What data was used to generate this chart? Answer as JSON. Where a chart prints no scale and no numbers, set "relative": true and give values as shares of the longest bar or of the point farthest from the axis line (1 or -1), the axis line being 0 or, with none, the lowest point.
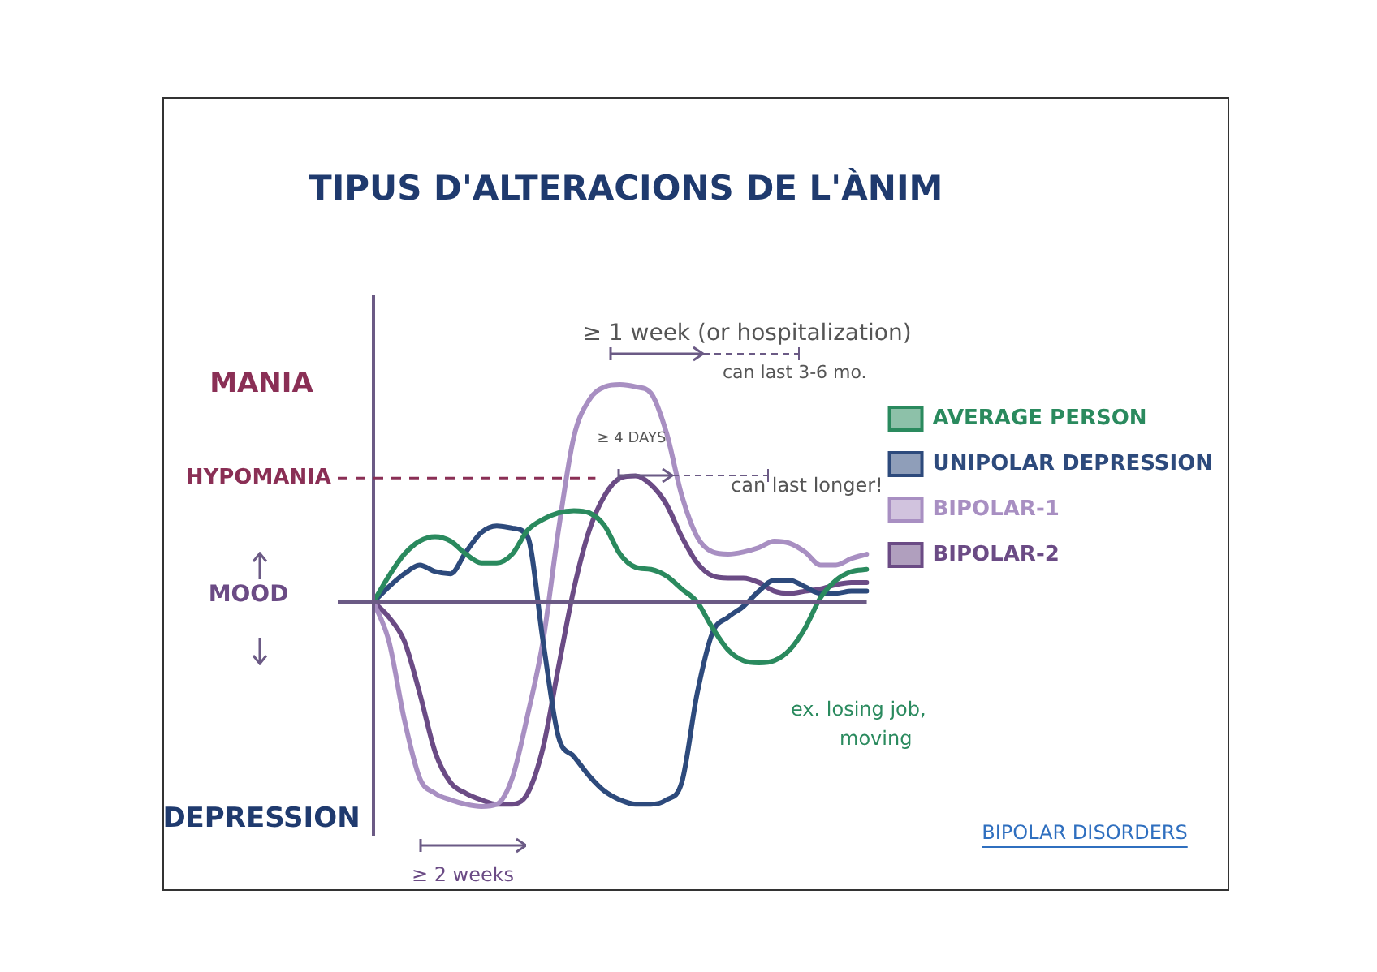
{
  "chart_data": {
    "type": "line",
    "title": "TIPUS D'ALTERACIONS DE L'ÀNIM",
    "ylabel": "MOOD",
    "relative": true,
    "legend": "right",
    "categories": [
      null,
      null,
      null,
      null,
      null,
      null,
      null,
      null,
      null,
      null,
      null,
      null,
      null,
      null,
      null,
      null,
      null,
      null,
      null,
      null,
      null,
      null,
      null,
      null,
      null,
      null,
      null,
      null,
      null,
      null,
      null,
      null,
      null
    ],
    "series": [
      {
        "name": "AVERAGE PERSON",
        "color": "#2a8a5e",
        "values": [
          0,
          0.12,
          0.22,
          0.28,
          0.3,
          0.28,
          0.22,
          0.18,
          0.18,
          0.22,
          0.33,
          0.38,
          0.41,
          0.42,
          0.41,
          0.35,
          0.22,
          0.16,
          0.15,
          0.12,
          0.06,
          0,
          -0.12,
          -0.22,
          -0.27,
          -0.28,
          -0.27,
          -0.22,
          -0.12,
          0.02,
          0.1,
          0.14,
          0.15
        ]
      },
      {
        "name": "UNIPOLAR DEPRESSION",
        "color": "#2d4a7c",
        "values": [
          0,
          0.07,
          0.13,
          0.17,
          0.14,
          0.13,
          0.23,
          0.32,
          0.35,
          0.34,
          0.3,
          -0.18,
          -0.62,
          -0.71,
          -0.8,
          -0.87,
          -0.91,
          -0.93,
          -0.93,
          -0.91,
          -0.83,
          -0.42,
          -0.14,
          -0.07,
          -0.02,
          0.05,
          0.1,
          0.1,
          0.07,
          0.04,
          0.04,
          0.05,
          0.05
        ]
      },
      {
        "name": "BIPOLAR-1",
        "color": "#a88fc2",
        "values": [
          0,
          -0.18,
          -0.54,
          -0.81,
          -0.88,
          -0.91,
          -0.93,
          -0.94,
          -0.93,
          -0.81,
          -0.52,
          -0.18,
          0.33,
          0.76,
          0.93,
          0.99,
          1,
          0.99,
          0.96,
          0.78,
          0.49,
          0.3,
          0.23,
          0.22,
          0.23,
          0.25,
          0.28,
          0.27,
          0.23,
          0.17,
          0.17,
          0.2,
          0.22
        ]
      },
      {
        "name": "BIPOLAR-2",
        "color": "#6b4b85",
        "values": [
          0,
          -0.07,
          -0.18,
          -0.42,
          -0.69,
          -0.83,
          -0.88,
          -0.91,
          -0.93,
          -0.93,
          -0.88,
          -0.67,
          -0.3,
          0.06,
          0.33,
          0.49,
          0.57,
          0.58,
          0.54,
          0.45,
          0.3,
          0.18,
          0.12,
          0.11,
          0.11,
          0.09,
          0.05,
          0.04,
          0.05,
          0.06,
          0.08,
          0.09,
          0.09
        ]
      }
    ],
    "ref_lines": [
      {
        "axis": "y",
        "value": 0.57,
        "label": "HYPOMANIA",
        "color": "#8a2f55",
        "line_style": "dashed"
      },
      {
        "axis": "y",
        "value": 0,
        "color": "#6b5a85",
        "line_style": "solid"
      }
    ],
    "annotations": [
      "MANIA",
      "DEPRESSION",
      "≥ 1 week (or hospitalization)",
      "can last 3-6 mo.",
      "≥ 4 DAYS",
      "can last longer!",
      "≥ 2 weeks",
      "ex. losing job, moving",
      "BIPOLAR DISORDERS"
    ]
  }
}
